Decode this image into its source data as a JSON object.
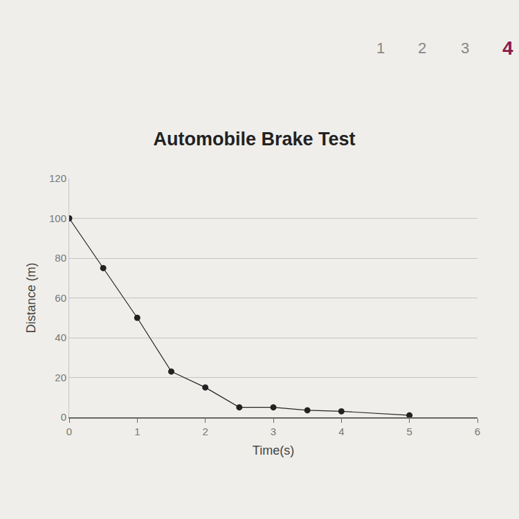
{
  "chart_data": {
    "type": "line",
    "title": "Automobile Brake Test",
    "x_label": "Time(s)",
    "y_label": "Distance (m)",
    "x": [
      0,
      0.5,
      1,
      1.5,
      2,
      2.5,
      3,
      3.5,
      4,
      5
    ],
    "values": [
      100,
      75,
      50,
      23,
      15,
      5,
      5,
      3.5,
      3,
      1
    ],
    "color": "#222222",
    "marker": "circle",
    "line_style": "solid",
    "xlim": [
      0,
      6
    ],
    "xticks": [
      0,
      1,
      2,
      3,
      4,
      5,
      6
    ],
    "ylim": [
      0,
      120
    ],
    "yticks": [
      0,
      20,
      40,
      60,
      80,
      100,
      120
    ],
    "grid": true,
    "annotations": [
      "1",
      "2",
      "3",
      "4"
    ]
  }
}
